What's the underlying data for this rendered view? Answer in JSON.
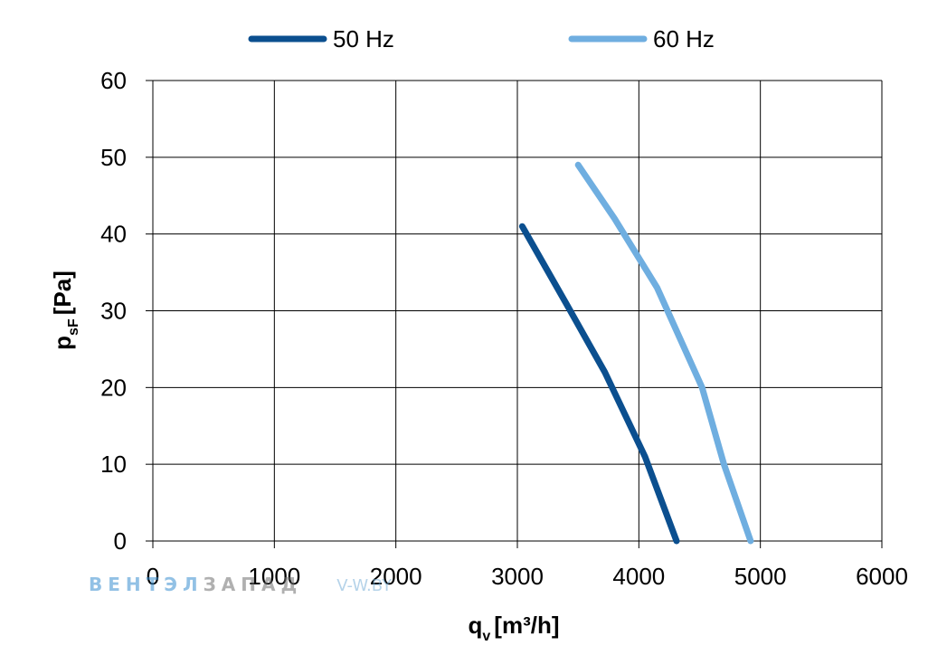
{
  "chart_data": {
    "type": "line",
    "xlim": [
      0,
      6000
    ],
    "ylim": [
      0,
      60
    ],
    "x_ticks": [
      0,
      1000,
      2000,
      3000,
      4000,
      5000,
      6000
    ],
    "y_ticks": [
      0,
      10,
      20,
      30,
      40,
      50,
      60
    ],
    "x_ticks_text": [
      "0",
      "1000",
      "2000",
      "3000",
      "4000",
      "5000",
      "6000"
    ],
    "y_ticks_text": [
      "0",
      "10",
      "20",
      "30",
      "40",
      "50",
      "60"
    ],
    "xlabel": {
      "main": "q",
      "sub": "v",
      "unit": "[m³/h]"
    },
    "ylabel": {
      "main": "p",
      "sub": "sF",
      "unit": "[Pa]"
    },
    "grid": true,
    "legend_position": "top",
    "series": [
      {
        "name": "50 Hz",
        "color": "#0b4f8f",
        "points": [
          [
            3040,
            41
          ],
          [
            3400,
            31
          ],
          [
            3720,
            22
          ],
          [
            4050,
            11
          ],
          [
            4310,
            0
          ]
        ]
      },
      {
        "name": "60 Hz",
        "color": "#6faee0",
        "points": [
          [
            3500,
            49
          ],
          [
            3800,
            42
          ],
          [
            4150,
            33
          ],
          [
            4520,
            20
          ],
          [
            4700,
            10
          ],
          [
            4920,
            0
          ]
        ]
      }
    ]
  },
  "watermark": {
    "part1": "ВЕНТЭЛ",
    "part2": "ЗАПАД",
    "site": "V-W.BY"
  }
}
